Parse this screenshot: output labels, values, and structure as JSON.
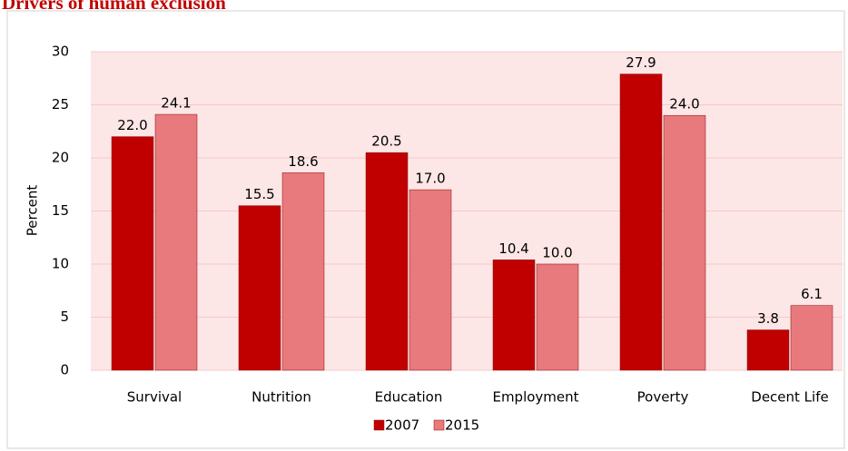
{
  "chart_data": {
    "type": "bar",
    "title": "Drivers of human exclusion",
    "y_label": "Percent",
    "categories": [
      "Survival",
      "Nutrition",
      "Education",
      "Employment",
      "Poverty",
      "Decent Life"
    ],
    "series": [
      {
        "name": "2007",
        "color": "#c00000",
        "values": [
          22.0,
          15.5,
          20.5,
          10.4,
          27.9,
          3.8
        ],
        "value_labels": [
          "22.0",
          "15.5",
          "20.5",
          "10.4",
          "27.9",
          "3.8"
        ]
      },
      {
        "name": "2015",
        "color": "#e8797d",
        "values": [
          24.1,
          18.6,
          17.0,
          10.0,
          24.0,
          6.1
        ],
        "value_labels": [
          "24.1",
          "18.6",
          "17.0",
          "10.0",
          "24.0",
          "6.1"
        ]
      }
    ],
    "ylim": [
      0,
      30
    ],
    "yticks": [
      0,
      5,
      10,
      15,
      20,
      25,
      30
    ],
    "grid": true,
    "legend": "bottom"
  }
}
